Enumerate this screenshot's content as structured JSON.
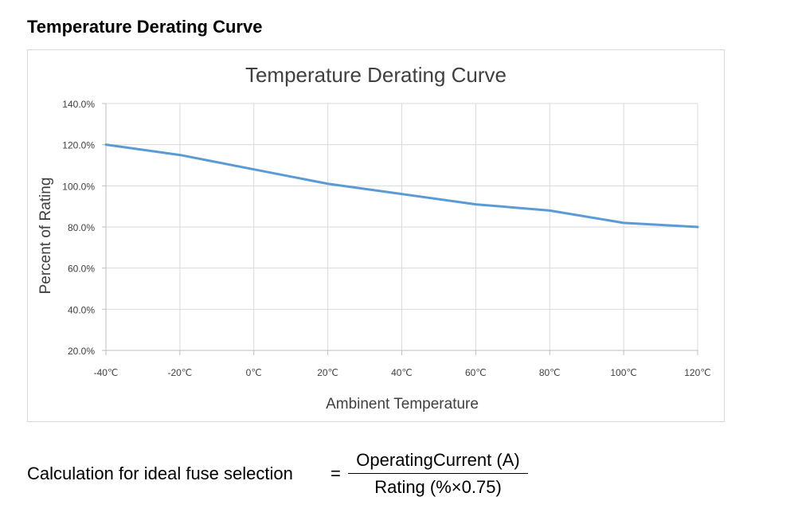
{
  "heading": "Temperature Derating Curve",
  "chart_data": {
    "type": "line",
    "title": "Temperature Derating Curve",
    "xlabel": "Ambinent Temperature",
    "ylabel": "Percent of Rating",
    "categories": [
      "-40℃",
      "-20℃",
      "0℃",
      "20℃",
      "40℃",
      "60℃",
      "80℃",
      "100℃",
      "120℃"
    ],
    "x": [
      -40,
      -20,
      0,
      20,
      40,
      60,
      80,
      100,
      120
    ],
    "series": [
      {
        "values": [
          120,
          115,
          108,
          101,
          96,
          91,
          88,
          82,
          80
        ],
        "color": "#5b9bd5"
      }
    ],
    "yticks": [
      "140.0%",
      "120.0%",
      "100.0%",
      "80.0%",
      "60.0%",
      "40.0%",
      "20.0%"
    ],
    "ytick_values": [
      140,
      120,
      100,
      80,
      60,
      40,
      20
    ],
    "ylim": [
      20,
      140
    ],
    "xlim": [
      -40,
      120
    ],
    "grid": true,
    "legend": "none",
    "gridline_color": "#d9d9d9",
    "axis_color": "#bfbfbf"
  },
  "formula": {
    "label": "Calculation  for  ideal  fuse  selection",
    "equals": "=",
    "numerator": "OperatingCurrent (A)",
    "denominator": "Rating  (%×0.75)"
  }
}
